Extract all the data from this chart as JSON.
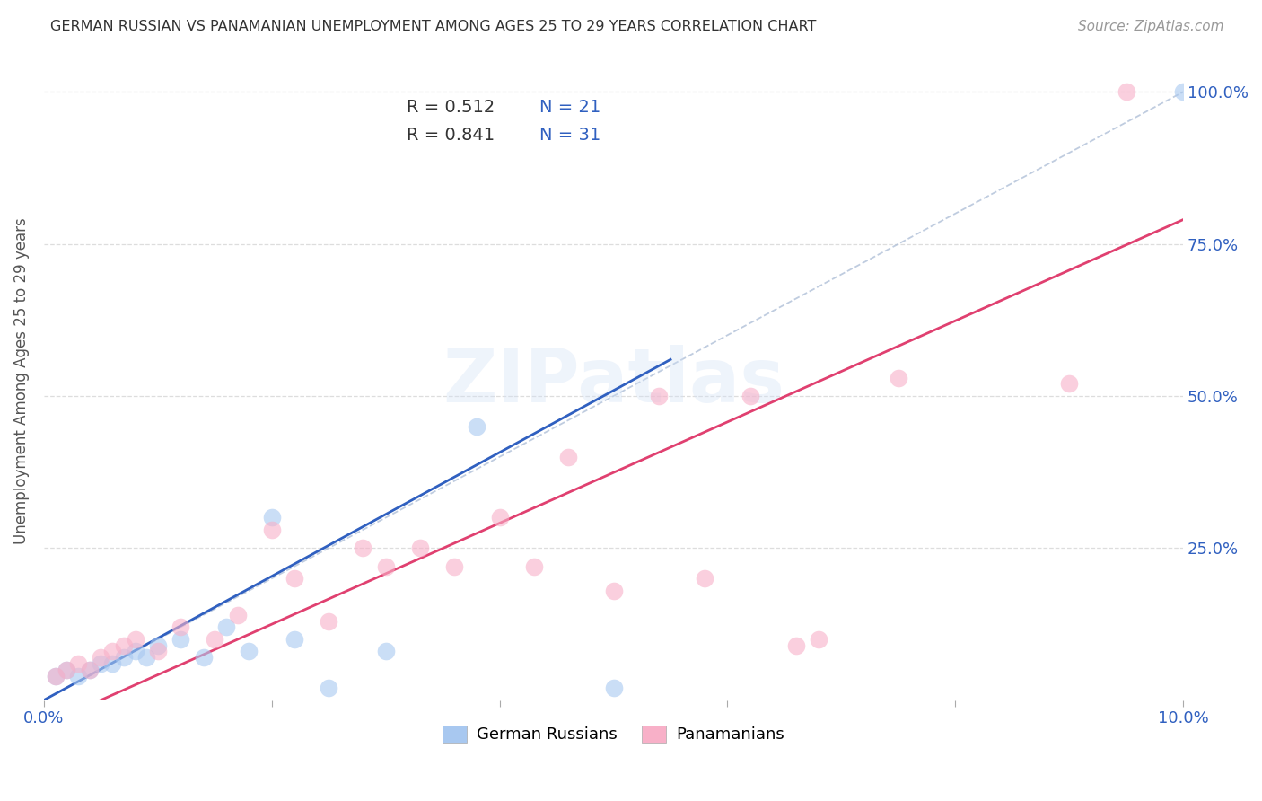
{
  "title": "GERMAN RUSSIAN VS PANAMANIAN UNEMPLOYMENT AMONG AGES 25 TO 29 YEARS CORRELATION CHART",
  "source": "Source: ZipAtlas.com",
  "ylabel": "Unemployment Among Ages 25 to 29 years",
  "xmin": 0.0,
  "xmax": 0.1,
  "ymin": 0.0,
  "ymax": 1.05,
  "x_ticks": [
    0.0,
    0.02,
    0.04,
    0.06,
    0.08,
    0.1
  ],
  "x_tick_labels": [
    "0.0%",
    "",
    "",
    "",
    "",
    "10.0%"
  ],
  "y_ticks": [
    0.0,
    0.25,
    0.5,
    0.75,
    1.0
  ],
  "y_tick_labels": [
    "",
    "25.0%",
    "50.0%",
    "75.0%",
    "100.0%"
  ],
  "blue_color": "#a8c8f0",
  "pink_color": "#f8b0c8",
  "blue_line_color": "#3060c0",
  "pink_line_color": "#e04070",
  "diag_line_color": "#b0c0d8",
  "watermark": "ZIPatlas",
  "blue_scatter_x": [
    0.001,
    0.002,
    0.003,
    0.004,
    0.005,
    0.006,
    0.007,
    0.008,
    0.009,
    0.01,
    0.012,
    0.014,
    0.016,
    0.018,
    0.02,
    0.022,
    0.025,
    0.03,
    0.038,
    0.05,
    0.1
  ],
  "blue_scatter_y": [
    0.04,
    0.05,
    0.04,
    0.05,
    0.06,
    0.06,
    0.07,
    0.08,
    0.07,
    0.09,
    0.1,
    0.07,
    0.12,
    0.08,
    0.3,
    0.1,
    0.02,
    0.08,
    0.45,
    0.02,
    1.0
  ],
  "pink_scatter_x": [
    0.001,
    0.002,
    0.003,
    0.004,
    0.005,
    0.006,
    0.007,
    0.008,
    0.01,
    0.012,
    0.015,
    0.017,
    0.02,
    0.022,
    0.025,
    0.028,
    0.03,
    0.033,
    0.036,
    0.04,
    0.043,
    0.046,
    0.05,
    0.054,
    0.058,
    0.062,
    0.066,
    0.068,
    0.075,
    0.09,
    0.095
  ],
  "pink_scatter_y": [
    0.04,
    0.05,
    0.06,
    0.05,
    0.07,
    0.08,
    0.09,
    0.1,
    0.08,
    0.12,
    0.1,
    0.14,
    0.28,
    0.2,
    0.13,
    0.25,
    0.22,
    0.25,
    0.22,
    0.3,
    0.22,
    0.4,
    0.18,
    0.5,
    0.2,
    0.5,
    0.09,
    0.1,
    0.53,
    0.52,
    1.0
  ],
  "blue_line_x": [
    0.0,
    0.055
  ],
  "blue_line_y": [
    0.0,
    0.56
  ],
  "pink_line_x": [
    0.005,
    0.1
  ],
  "pink_line_y": [
    0.0,
    0.79
  ],
  "diag_line_x": [
    0.0,
    0.1
  ],
  "diag_line_y": [
    0.0,
    1.0
  ],
  "background_color": "#ffffff",
  "grid_color": "#dddddd"
}
